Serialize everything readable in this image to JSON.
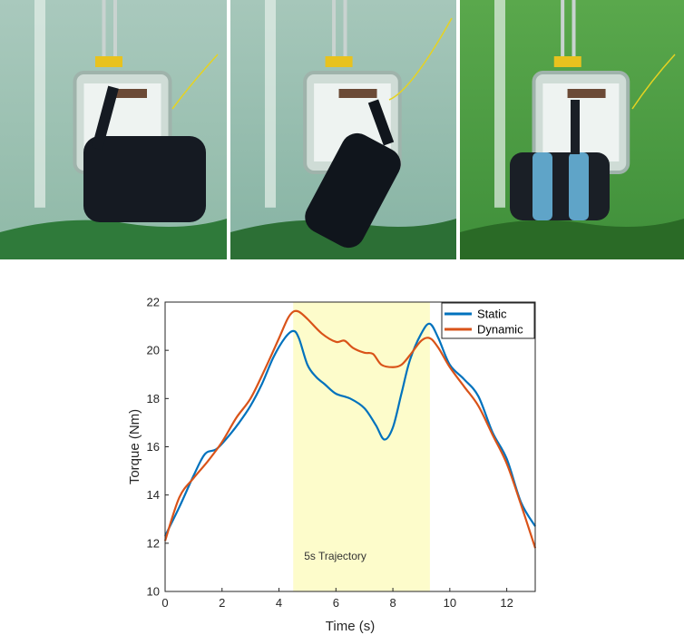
{
  "photos": [
    {
      "name": "robot-grasp-photo-1",
      "tint": "#8fb9a7",
      "water_top": "#a9c9bd",
      "floor": "#2f7a3a",
      "body_color": "#151a22"
    },
    {
      "name": "robot-grasp-photo-2",
      "tint": "#86b3a3",
      "water_top": "#a6c7ba",
      "floor": "#2c6f35",
      "body_color": "#10151c"
    },
    {
      "name": "robot-grasp-photo-3",
      "tint": "#3f8f3a",
      "water_top": "#5aa84c",
      "floor": "#2a6a26",
      "body_color": "#1a1f26"
    }
  ],
  "chart_data": {
    "type": "line",
    "xlabel": "Time (s)",
    "ylabel": "Torque (Nm)",
    "xlim": [
      0,
      13
    ],
    "ylim": [
      10,
      22
    ],
    "xticks": [
      "0",
      "2",
      "4",
      "6",
      "8",
      "10",
      "12"
    ],
    "yticks": [
      "10",
      "12",
      "14",
      "16",
      "18",
      "20",
      "22"
    ],
    "grid": false,
    "legend_position": "top-right",
    "shaded_region": {
      "x_start": 4.5,
      "x_end": 9.3,
      "color": "#fdfccb",
      "label": "5s Trajectory"
    },
    "series": [
      {
        "name": "Static",
        "color": "#0072bd",
        "points": [
          [
            0,
            12.3
          ],
          [
            0.5,
            13.5
          ],
          [
            1,
            14.8
          ],
          [
            1.4,
            15.7
          ],
          [
            1.8,
            15.9
          ],
          [
            2.2,
            16.4
          ],
          [
            2.6,
            17.0
          ],
          [
            3.0,
            17.7
          ],
          [
            3.4,
            18.6
          ],
          [
            3.8,
            19.7
          ],
          [
            4.2,
            20.5
          ],
          [
            4.5,
            20.8
          ],
          [
            4.7,
            20.5
          ],
          [
            5.0,
            19.4
          ],
          [
            5.3,
            18.9
          ],
          [
            5.6,
            18.6
          ],
          [
            6.0,
            18.2
          ],
          [
            6.5,
            18.0
          ],
          [
            7.0,
            17.6
          ],
          [
            7.4,
            16.9
          ],
          [
            7.7,
            16.3
          ],
          [
            8.0,
            16.8
          ],
          [
            8.3,
            18.2
          ],
          [
            8.6,
            19.6
          ],
          [
            9.0,
            20.7
          ],
          [
            9.3,
            21.1
          ],
          [
            9.6,
            20.5
          ],
          [
            10.0,
            19.4
          ],
          [
            10.5,
            18.8
          ],
          [
            11.0,
            18.1
          ],
          [
            11.5,
            16.6
          ],
          [
            12.0,
            15.5
          ],
          [
            12.5,
            13.7
          ],
          [
            13.0,
            12.7
          ]
        ]
      },
      {
        "name": "Dynamic",
        "color": "#d95319",
        "points": [
          [
            0,
            12.1
          ],
          [
            0.5,
            13.9
          ],
          [
            1.0,
            14.7
          ],
          [
            1.5,
            15.4
          ],
          [
            2.0,
            16.2
          ],
          [
            2.5,
            17.2
          ],
          [
            3.0,
            18.0
          ],
          [
            3.5,
            19.2
          ],
          [
            4.0,
            20.5
          ],
          [
            4.3,
            21.3
          ],
          [
            4.5,
            21.6
          ],
          [
            4.7,
            21.6
          ],
          [
            5.0,
            21.3
          ],
          [
            5.5,
            20.7
          ],
          [
            6.0,
            20.35
          ],
          [
            6.3,
            20.4
          ],
          [
            6.6,
            20.1
          ],
          [
            7.0,
            19.9
          ],
          [
            7.3,
            19.85
          ],
          [
            7.6,
            19.4
          ],
          [
            8.0,
            19.3
          ],
          [
            8.3,
            19.4
          ],
          [
            8.6,
            19.8
          ],
          [
            9.0,
            20.4
          ],
          [
            9.3,
            20.5
          ],
          [
            9.6,
            20.1
          ],
          [
            10.0,
            19.3
          ],
          [
            10.5,
            18.5
          ],
          [
            11.0,
            17.7
          ],
          [
            11.5,
            16.5
          ],
          [
            12.0,
            15.3
          ],
          [
            12.5,
            13.6
          ],
          [
            13.0,
            11.8
          ]
        ]
      }
    ]
  }
}
